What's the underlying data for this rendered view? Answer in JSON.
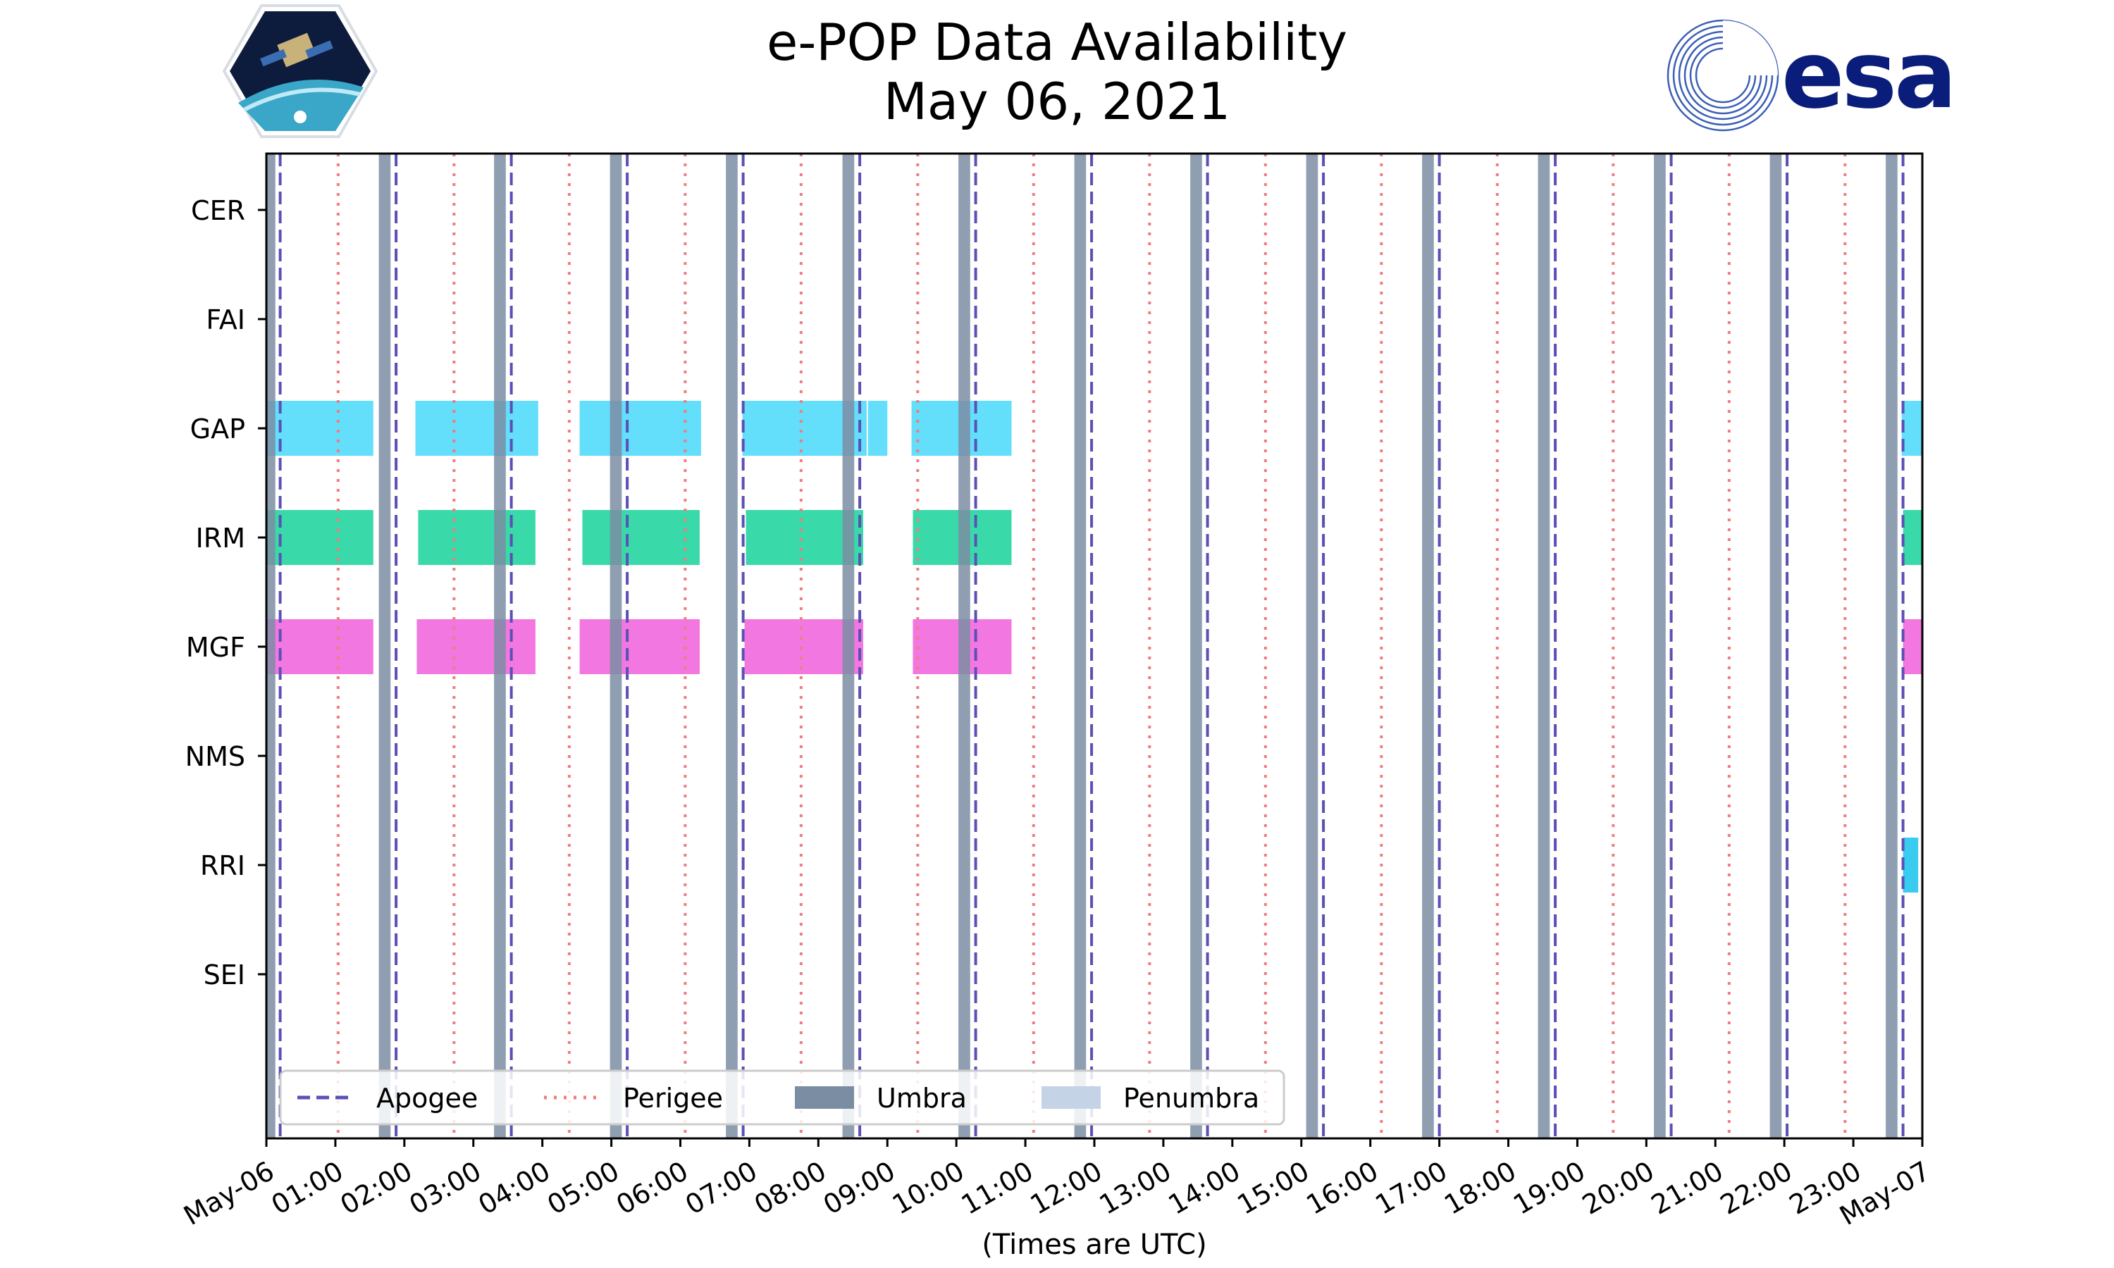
{
  "title_line1": "e-POP Data Availability",
  "title_line2": "May 06, 2021",
  "logos": {
    "left": "cassiope-mission-logo",
    "right": "esa-logo",
    "right_text": "esa"
  },
  "chart_data": {
    "type": "timeline",
    "xlabel": "(Times are UTC)",
    "x_range_hours": [
      0,
      24
    ],
    "x_tick_labels": [
      "May-06",
      "01:00",
      "02:00",
      "03:00",
      "04:00",
      "05:00",
      "06:00",
      "07:00",
      "08:00",
      "09:00",
      "10:00",
      "11:00",
      "12:00",
      "13:00",
      "14:00",
      "15:00",
      "16:00",
      "17:00",
      "18:00",
      "19:00",
      "20:00",
      "21:00",
      "22:00",
      "23:00",
      "May-07"
    ],
    "categories": [
      "CER",
      "FAI",
      "GAP",
      "IRM",
      "MGF",
      "NMS",
      "RRI",
      "SEI"
    ],
    "apogee_hours": [
      0.2,
      1.88,
      3.55,
      5.23,
      6.91,
      8.6,
      10.28,
      11.96,
      13.64,
      15.32,
      17.0,
      18.68,
      20.36,
      22.04,
      23.72
    ],
    "perigee_hours": [
      1.04,
      2.72,
      4.39,
      6.07,
      7.75,
      9.44,
      11.12,
      12.8,
      14.48,
      16.16,
      17.84,
      19.52,
      21.2,
      22.88
    ],
    "umbra_intervals": [
      [
        0.0,
        0.13
      ],
      [
        1.63,
        1.8
      ],
      [
        3.3,
        3.47
      ],
      [
        4.98,
        5.15
      ],
      [
        6.66,
        6.83
      ],
      [
        8.35,
        8.52
      ],
      [
        10.03,
        10.2
      ],
      [
        11.71,
        11.88
      ],
      [
        13.39,
        13.56
      ],
      [
        15.07,
        15.24
      ],
      [
        16.75,
        16.92
      ],
      [
        18.43,
        18.6
      ],
      [
        20.11,
        20.28
      ],
      [
        21.79,
        21.96
      ],
      [
        23.47,
        23.64
      ]
    ],
    "series": [
      {
        "name": "GAP",
        "color": "#4dd9fa",
        "intervals": [
          [
            0.0,
            1.55
          ],
          [
            2.16,
            3.94
          ],
          [
            4.54,
            6.3
          ],
          [
            6.9,
            8.7
          ],
          [
            8.72,
            9.0
          ],
          [
            9.35,
            10.8
          ],
          [
            23.7,
            24.0
          ]
        ]
      },
      {
        "name": "IRM",
        "color": "#1fd49d",
        "intervals": [
          [
            0.0,
            1.55
          ],
          [
            2.2,
            3.9
          ],
          [
            4.58,
            6.28
          ],
          [
            6.95,
            8.65
          ],
          [
            9.37,
            10.8
          ],
          [
            23.72,
            24.0
          ]
        ]
      },
      {
        "name": "MGF",
        "color": "#f064dc",
        "intervals": [
          [
            0.0,
            1.55
          ],
          [
            2.18,
            3.9
          ],
          [
            4.54,
            6.28
          ],
          [
            6.93,
            8.65
          ],
          [
            9.37,
            10.8
          ],
          [
            23.72,
            24.0
          ]
        ]
      },
      {
        "name": "RRI",
        "color": "#1ec5ef",
        "intervals": [
          [
            23.72,
            23.94
          ]
        ]
      }
    ],
    "legend": {
      "placement": "lower-left",
      "entries": [
        {
          "label": "Apogee",
          "style": "dashed",
          "color": "#5b50b5"
        },
        {
          "label": "Perigee",
          "style": "dotted",
          "color": "#f27c7c"
        },
        {
          "label": "Umbra",
          "style": "patch",
          "color": "#7b8da3"
        },
        {
          "label": "Penumbra",
          "style": "patch",
          "color": "#c5d3e6"
        }
      ]
    }
  }
}
